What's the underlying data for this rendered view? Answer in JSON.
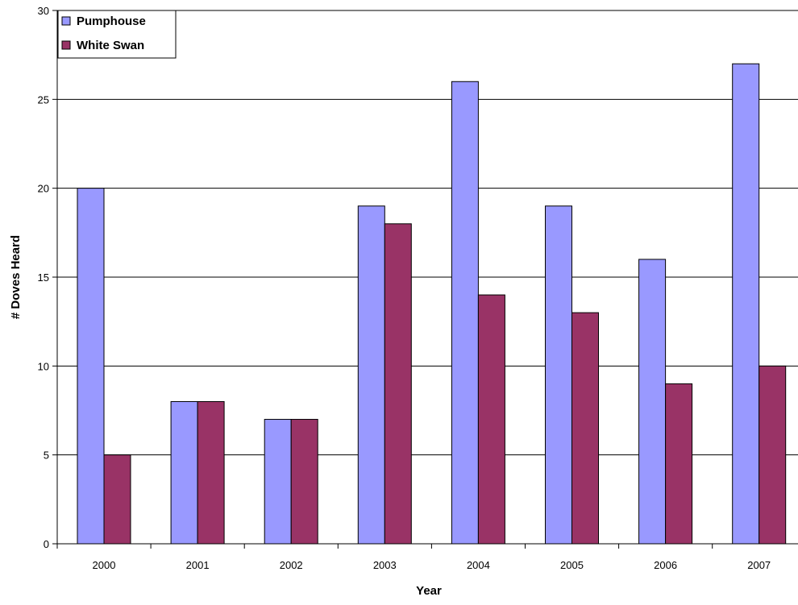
{
  "chart_data": {
    "type": "bar",
    "title": "",
    "xlabel": "Year",
    "ylabel": "# Doves Heard",
    "categories": [
      "2000",
      "2001",
      "2002",
      "2003",
      "2004",
      "2005",
      "2006",
      "2007"
    ],
    "series": [
      {
        "name": "Pumphouse",
        "color": "#9999ff",
        "values": [
          20,
          8,
          7,
          19,
          26,
          19,
          16,
          27
        ]
      },
      {
        "name": "White Swan",
        "color": "#993366",
        "values": [
          5,
          8,
          7,
          18,
          14,
          13,
          9,
          10
        ]
      }
    ],
    "ylim": [
      0,
      30
    ],
    "yticks": [
      0,
      5,
      10,
      15,
      20,
      25,
      30
    ],
    "grid": true,
    "legend_position": "top-left"
  }
}
